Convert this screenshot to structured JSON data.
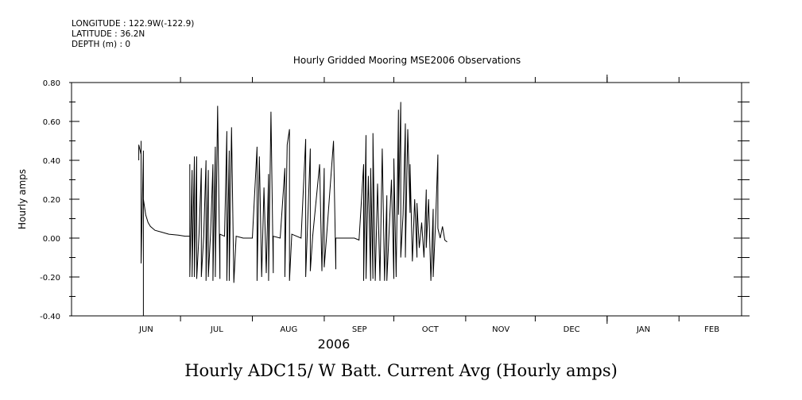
{
  "header": {
    "longitude": "LONGITUDE : 122.9W(-122.9)",
    "latitude": "LATITUDE : 36.2N",
    "depth": "DEPTH (m) : 0"
  },
  "bottom_title": "Hourly ADC15/ W Batt. Current Avg (Hourly amps)",
  "chart_data": {
    "type": "line",
    "title": "Hourly Gridded Mooring MSE2006 Observations",
    "ylabel": "Hourly amps",
    "xlabel": "2006",
    "ylim": [
      -0.4,
      0.8
    ],
    "yticks": [
      "-0.40",
      "-0.20",
      "0.00",
      "0.20",
      "0.40",
      "0.60",
      "0.80"
    ],
    "xlim": [
      "2006-05-15",
      "2007-02-28"
    ],
    "months": [
      {
        "label": "JUN",
        "start": "2006-06-01",
        "end": "2006-06-30"
      },
      {
        "label": "JUL",
        "start": "2006-07-01",
        "end": "2006-07-31"
      },
      {
        "label": "AUG",
        "start": "2006-08-01",
        "end": "2006-08-31"
      },
      {
        "label": "SEP",
        "start": "2006-09-01",
        "end": "2006-09-30"
      },
      {
        "label": "OCT",
        "start": "2006-10-01",
        "end": "2006-10-31"
      },
      {
        "label": "NOV",
        "start": "2006-11-01",
        "end": "2006-11-30"
      },
      {
        "label": "DEC",
        "start": "2006-12-01",
        "end": "2006-12-31"
      },
      {
        "label": "JAN",
        "start": "2007-01-01",
        "end": "2007-01-31"
      },
      {
        "label": "FEB",
        "start": "2007-02-01",
        "end": "2007-02-28"
      }
    ],
    "series": [
      {
        "color": "#000000",
        "points": [
          [
            "2006-06-13",
            0.4
          ],
          [
            "2006-06-13",
            0.48
          ],
          [
            "2006-06-14",
            0.43
          ],
          [
            "2006-06-14",
            0.5
          ],
          [
            "2006-06-14",
            -0.13
          ],
          [
            "2006-06-15",
            0.45
          ],
          [
            "2006-06-15",
            -0.4
          ],
          [
            "2006-06-15",
            0.2
          ],
          [
            "2006-06-16",
            0.12
          ],
          [
            "2006-06-17",
            0.08
          ],
          [
            "2006-06-18",
            0.06
          ],
          [
            "2006-06-20",
            0.04
          ],
          [
            "2006-06-23",
            0.03
          ],
          [
            "2006-06-26",
            0.02
          ],
          [
            "2006-06-30",
            0.015
          ],
          [
            "2006-07-03",
            0.01
          ],
          [
            "2006-07-05",
            0.01
          ],
          [
            "2006-07-05",
            0.38
          ],
          [
            "2006-07-05",
            -0.2
          ],
          [
            "2006-07-06",
            0.35
          ],
          [
            "2006-07-06",
            -0.2
          ],
          [
            "2006-07-07",
            0.42
          ],
          [
            "2006-07-07",
            -0.2
          ],
          [
            "2006-07-08",
            0.42
          ],
          [
            "2006-07-08",
            -0.21
          ],
          [
            "2006-07-09",
            0.02
          ],
          [
            "2006-07-10",
            0.36
          ],
          [
            "2006-07-10",
            -0.2
          ],
          [
            "2006-07-11",
            0.01
          ],
          [
            "2006-07-12",
            0.4
          ],
          [
            "2006-07-12",
            -0.22
          ],
          [
            "2006-07-13",
            0.35
          ],
          [
            "2006-07-13",
            -0.2
          ],
          [
            "2006-07-14",
            0.03
          ],
          [
            "2006-07-15",
            0.38
          ],
          [
            "2006-07-15",
            -0.22
          ],
          [
            "2006-07-16",
            0.47
          ],
          [
            "2006-07-16",
            -0.2
          ],
          [
            "2006-07-17",
            0.68
          ],
          [
            "2006-07-18",
            -0.21
          ],
          [
            "2006-07-18",
            0.02
          ],
          [
            "2006-07-20",
            0.01
          ],
          [
            "2006-07-21",
            0.55
          ],
          [
            "2006-07-21",
            -0.22
          ],
          [
            "2006-07-22",
            0.45
          ],
          [
            "2006-07-22",
            -0.22
          ],
          [
            "2006-07-23",
            0.57
          ],
          [
            "2006-07-24",
            -0.23
          ],
          [
            "2006-07-25",
            0.01
          ],
          [
            "2006-07-28",
            0.0
          ],
          [
            "2006-08-01",
            0.0
          ],
          [
            "2006-08-03",
            0.47
          ],
          [
            "2006-08-03",
            -0.22
          ],
          [
            "2006-08-04",
            0.42
          ],
          [
            "2006-08-05",
            -0.2
          ],
          [
            "2006-08-06",
            0.26
          ],
          [
            "2006-08-07",
            -0.18
          ],
          [
            "2006-08-08",
            0.33
          ],
          [
            "2006-08-08",
            -0.22
          ],
          [
            "2006-08-09",
            0.65
          ],
          [
            "2006-08-10",
            -0.18
          ],
          [
            "2006-08-10",
            0.01
          ],
          [
            "2006-08-13",
            0.0
          ],
          [
            "2006-08-15",
            0.36
          ],
          [
            "2006-08-15",
            -0.2
          ],
          [
            "2006-08-16",
            0.48
          ],
          [
            "2006-08-17",
            0.56
          ],
          [
            "2006-08-17",
            -0.22
          ],
          [
            "2006-08-18",
            0.02
          ],
          [
            "2006-08-22",
            0.0
          ],
          [
            "2006-08-24",
            0.51
          ],
          [
            "2006-08-24",
            -0.2
          ],
          [
            "2006-08-26",
            0.46
          ],
          [
            "2006-08-26",
            -0.17
          ],
          [
            "2006-08-27",
            0.01
          ],
          [
            "2006-08-30",
            0.38
          ],
          [
            "2006-08-31",
            -0.17
          ],
          [
            "2006-09-01",
            0.36
          ],
          [
            "2006-09-01",
            -0.15
          ],
          [
            "2006-09-02",
            0.01
          ],
          [
            "2006-09-05",
            0.5
          ],
          [
            "2006-09-06",
            -0.16
          ],
          [
            "2006-09-06",
            0.0
          ],
          [
            "2006-09-10",
            0.0
          ],
          [
            "2006-09-14",
            0.0
          ],
          [
            "2006-09-16",
            -0.01
          ],
          [
            "2006-09-18",
            0.38
          ],
          [
            "2006-09-18",
            -0.22
          ],
          [
            "2006-09-19",
            0.53
          ],
          [
            "2006-09-19",
            -0.21
          ],
          [
            "2006-09-20",
            0.32
          ],
          [
            "2006-09-21",
            -0.22
          ],
          [
            "2006-09-21",
            0.36
          ],
          [
            "2006-09-22",
            -0.21
          ],
          [
            "2006-09-22",
            0.54
          ],
          [
            "2006-09-23",
            -0.22
          ],
          [
            "2006-09-24",
            0.28
          ],
          [
            "2006-09-25",
            -0.22
          ],
          [
            "2006-09-26",
            0.46
          ],
          [
            "2006-09-27",
            -0.22
          ],
          [
            "2006-09-28",
            0.22
          ],
          [
            "2006-09-28",
            -0.22
          ],
          [
            "2006-09-30",
            0.3
          ],
          [
            "2006-10-01",
            -0.21
          ],
          [
            "2006-10-01",
            0.41
          ],
          [
            "2006-10-02",
            -0.2
          ],
          [
            "2006-10-03",
            0.66
          ],
          [
            "2006-10-03",
            0.12
          ],
          [
            "2006-10-04",
            0.7
          ],
          [
            "2006-10-04",
            -0.1
          ],
          [
            "2006-10-05",
            0.12
          ],
          [
            "2006-10-06",
            0.59
          ],
          [
            "2006-10-06",
            -0.1
          ],
          [
            "2006-10-07",
            0.56
          ],
          [
            "2006-10-08",
            0.13
          ],
          [
            "2006-10-08",
            0.38
          ],
          [
            "2006-10-09",
            -0.12
          ],
          [
            "2006-10-10",
            0.2
          ],
          [
            "2006-10-11",
            -0.1
          ],
          [
            "2006-10-11",
            0.18
          ],
          [
            "2006-10-12",
            -0.05
          ],
          [
            "2006-10-13",
            0.08
          ],
          [
            "2006-10-14",
            -0.1
          ],
          [
            "2006-10-15",
            0.25
          ],
          [
            "2006-10-15",
            -0.05
          ],
          [
            "2006-10-16",
            0.2
          ],
          [
            "2006-10-17",
            -0.22
          ],
          [
            "2006-10-18",
            0.15
          ],
          [
            "2006-10-18",
            -0.2
          ],
          [
            "2006-10-19",
            0.08
          ],
          [
            "2006-10-20",
            0.43
          ],
          [
            "2006-10-20",
            0.05
          ],
          [
            "2006-10-21",
            0.0
          ],
          [
            "2006-10-22",
            0.06
          ],
          [
            "2006-10-23",
            -0.01
          ],
          [
            "2006-10-24",
            -0.02
          ]
        ]
      }
    ]
  }
}
